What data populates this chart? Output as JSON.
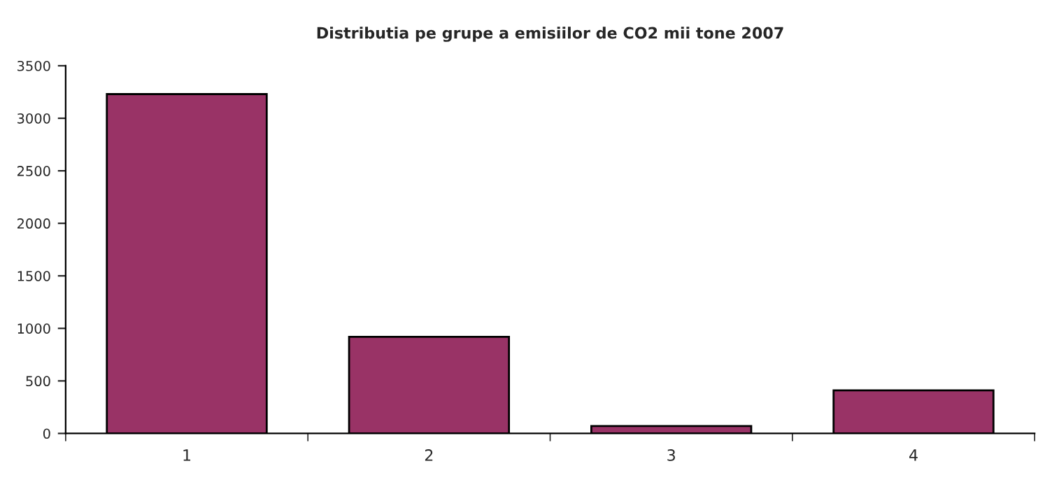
{
  "chart_data": {
    "type": "bar",
    "title": "Distributia pe grupe a emisiilor de CO2 mii tone 2007",
    "categories": [
      "1",
      "2",
      "3",
      "4"
    ],
    "values": [
      3230,
      920,
      70,
      410
    ],
    "color": "#993366",
    "ylim": [
      0,
      3500
    ],
    "yticks": [
      0,
      500,
      1000,
      1500,
      2000,
      2500,
      3000,
      3500
    ],
    "grid": false,
    "legend": false
  }
}
